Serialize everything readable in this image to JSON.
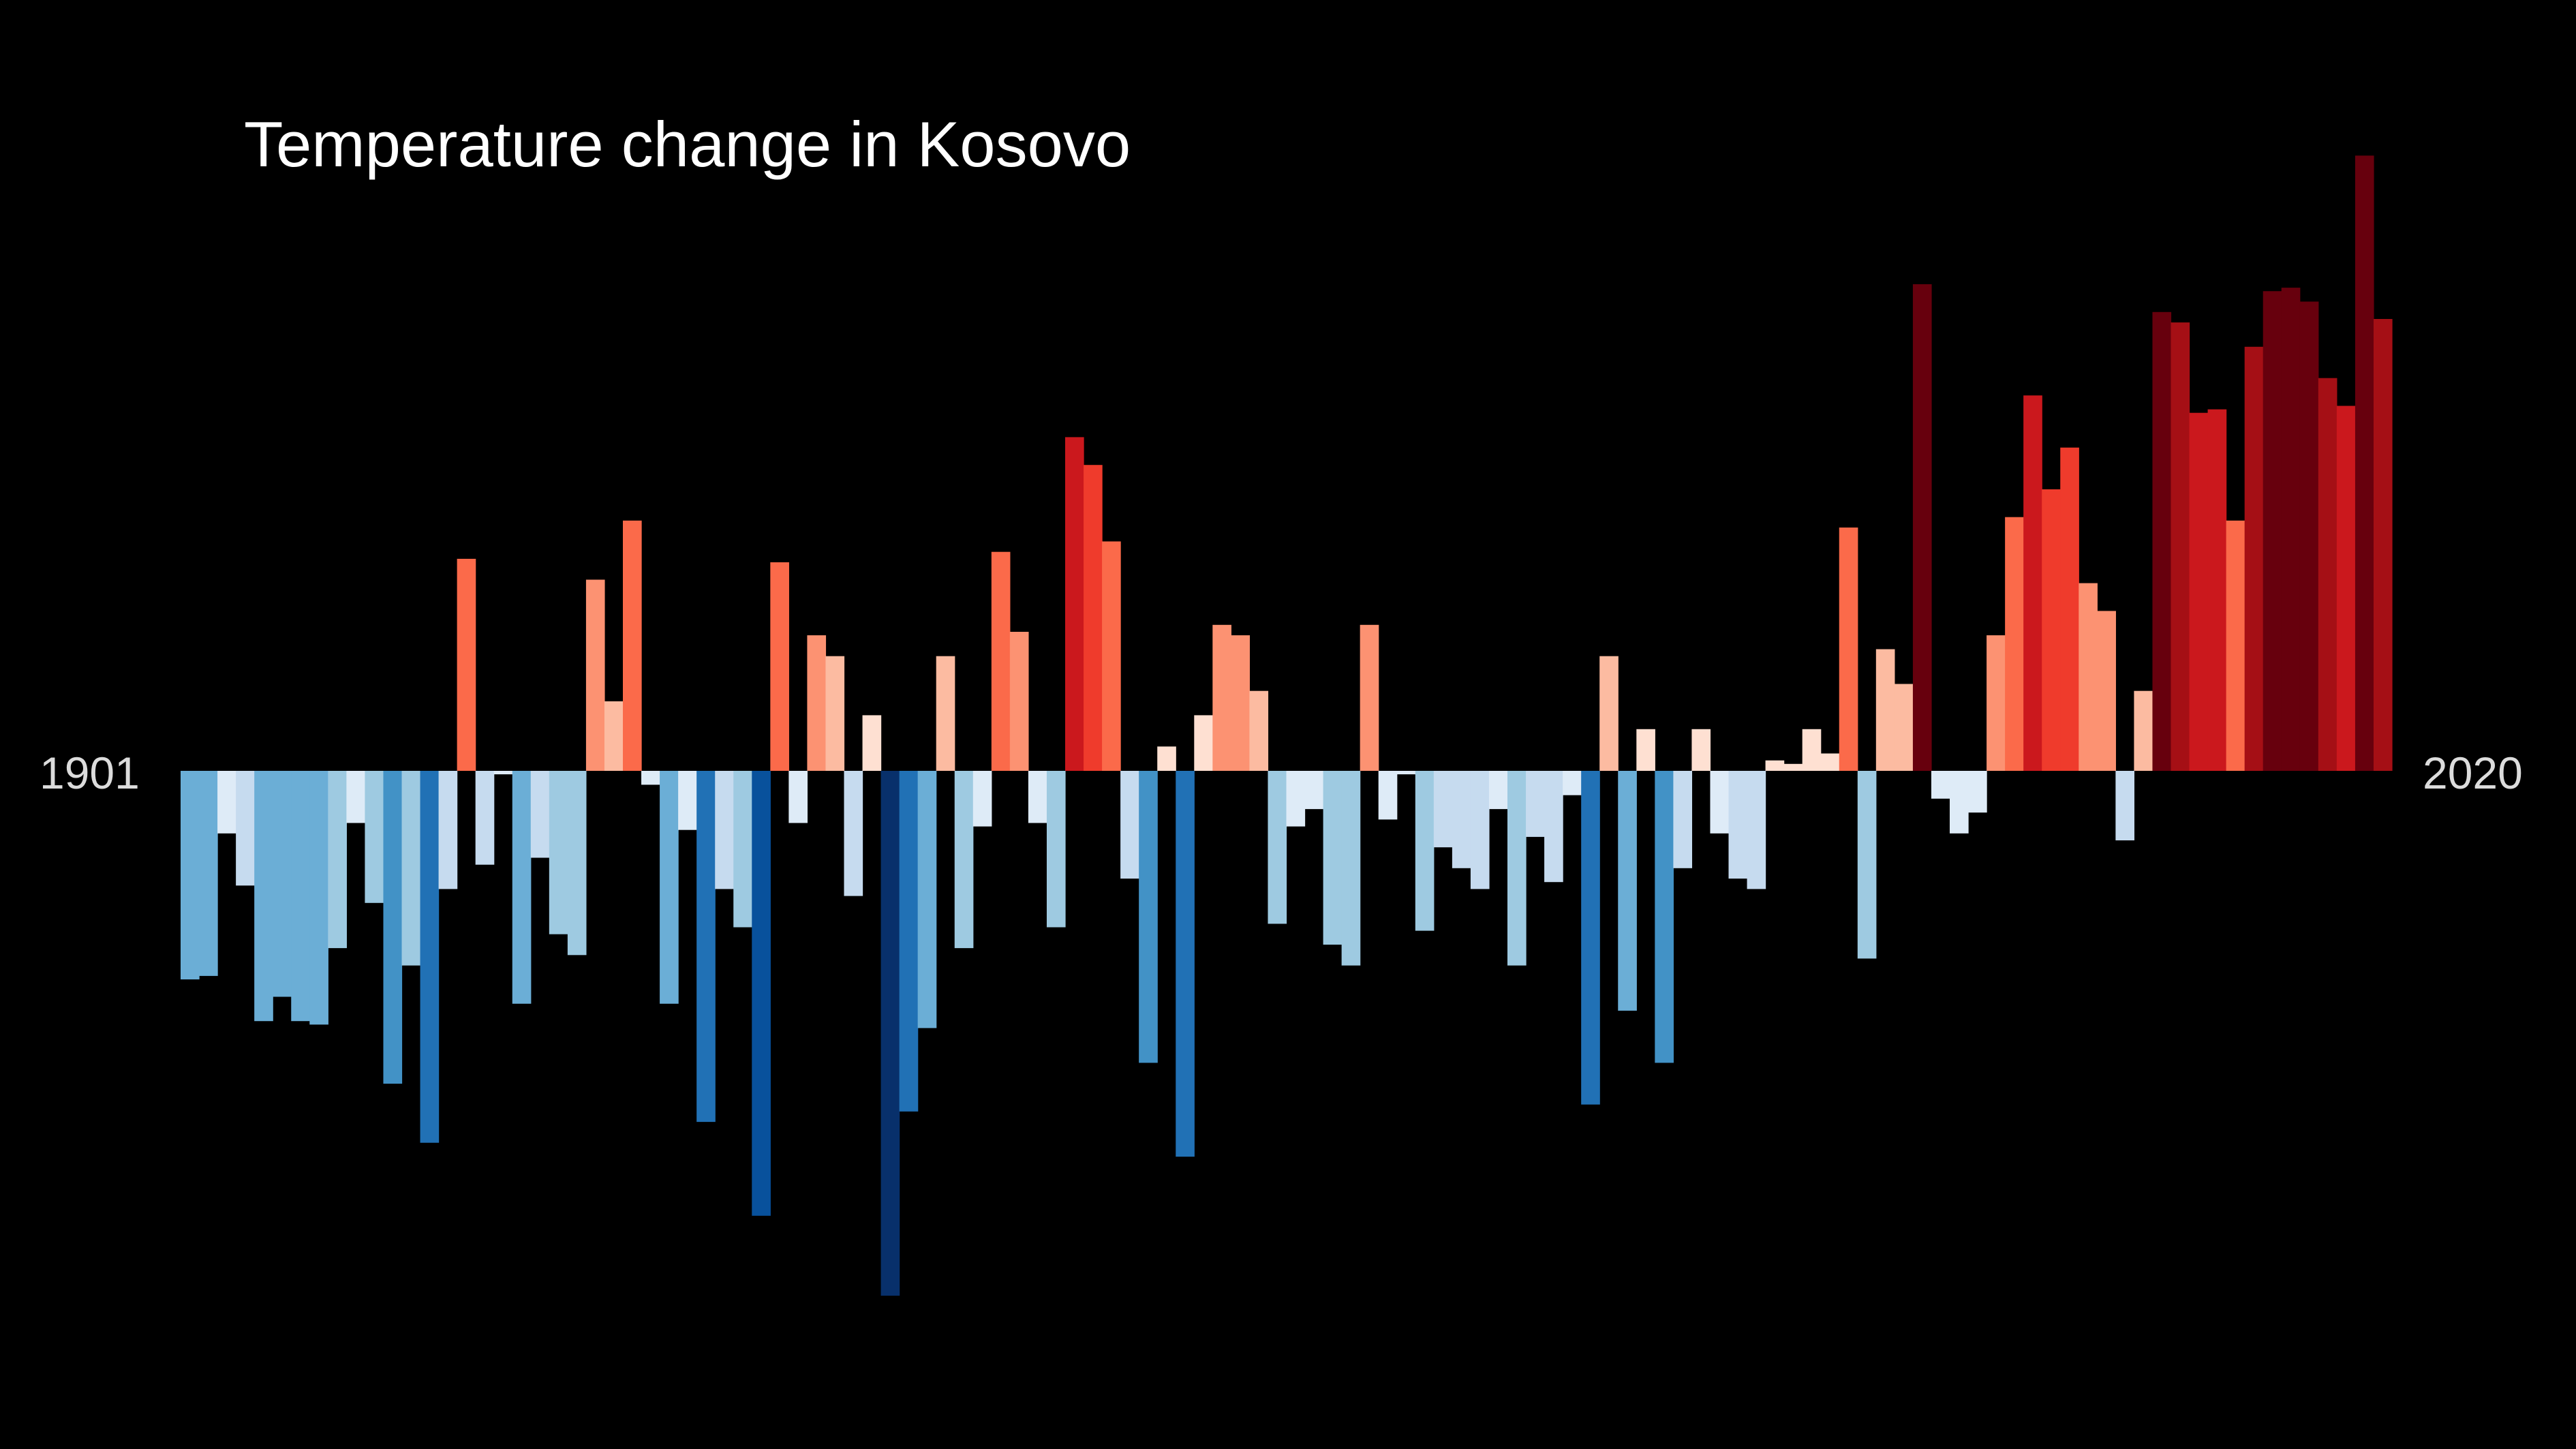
{
  "chart_data": {
    "type": "bar",
    "title": "Temperature change in Kosovo",
    "start_year": "1901",
    "end_year": "2020",
    "value_unit": "relative anomaly (arbitrary units, axis unlabeled)",
    "ylim": [
      -1.5,
      1.8
    ],
    "values": [
      -0.6,
      -0.59,
      -0.18,
      -0.33,
      -0.72,
      -0.65,
      -0.72,
      -0.73,
      -0.51,
      -0.15,
      -0.38,
      -0.9,
      -0.56,
      -1.07,
      -0.34,
      0.61,
      -0.27,
      -0.01,
      -0.67,
      -0.25,
      -0.47,
      -0.53,
      0.55,
      0.2,
      0.72,
      -0.04,
      -0.67,
      -0.17,
      -1.01,
      -0.34,
      -0.45,
      -1.28,
      0.6,
      -0.15,
      0.39,
      0.33,
      -0.36,
      0.16,
      -1.51,
      -0.98,
      -0.74,
      0.33,
      -0.51,
      -0.16,
      0.63,
      0.4,
      -0.15,
      -0.45,
      0.96,
      0.88,
      0.66,
      -0.31,
      -0.84,
      0.07,
      -1.11,
      0.16,
      0.42,
      0.39,
      0.23,
      -0.44,
      -0.16,
      -0.11,
      -0.5,
      -0.56,
      0.42,
      -0.14,
      -0.01,
      -0.46,
      -0.22,
      -0.28,
      -0.34,
      -0.11,
      -0.56,
      -0.19,
      -0.32,
      -0.07,
      -0.96,
      0.33,
      -0.69,
      0.12,
      -0.84,
      -0.28,
      0.12,
      -0.18,
      -0.31,
      -0.34,
      0.03,
      0.02,
      0.12,
      0.05,
      0.7,
      -0.54,
      0.35,
      0.25,
      1.4,
      -0.08,
      -0.18,
      -0.12,
      0.39,
      0.73,
      1.08,
      0.81,
      0.93,
      0.54,
      0.46,
      -0.2,
      0.23,
      1.32,
      1.29,
      1.03,
      1.04,
      0.72,
      1.22,
      1.38,
      1.39,
      1.35,
      1.13,
      1.05,
      1.77,
      1.3
    ]
  }
}
